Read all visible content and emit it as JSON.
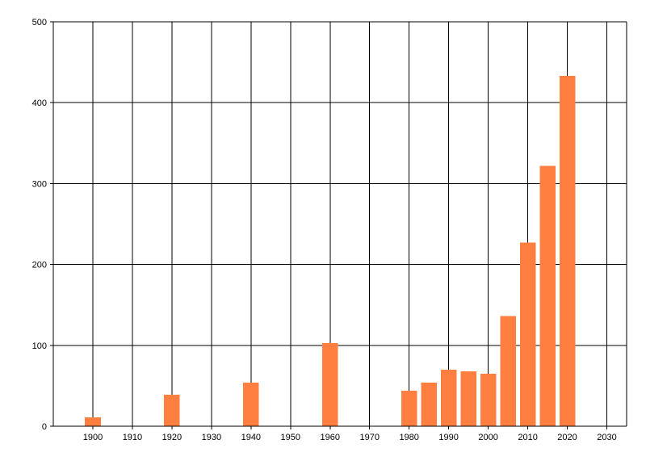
{
  "chart_data": {
    "type": "bar",
    "title": "",
    "xlabel": "",
    "ylabel": "",
    "x": [
      1900,
      1920,
      1940,
      1960,
      1980,
      1985,
      1990,
      1995,
      2000,
      2005,
      2010,
      2015,
      2020
    ],
    "values": [
      11,
      39,
      54,
      103,
      44,
      54,
      70,
      68,
      65,
      136,
      227,
      322,
      433
    ],
    "xlim": [
      1890,
      2035
    ],
    "ylim": [
      0,
      500
    ],
    "xticks": [
      1900,
      1910,
      1920,
      1930,
      1940,
      1950,
      1960,
      1970,
      1980,
      1990,
      2000,
      2010,
      2020,
      2030
    ],
    "yticks": [
      0,
      100,
      200,
      300,
      400,
      500
    ],
    "grid": true,
    "legend": "none",
    "bar_color": "#ff7f40",
    "bar_width_years": 4
  }
}
